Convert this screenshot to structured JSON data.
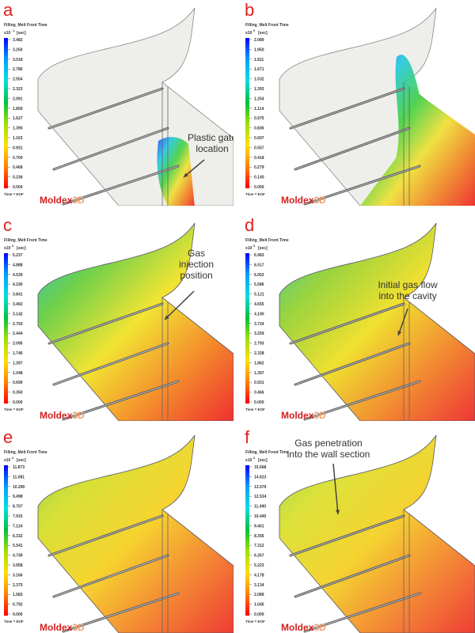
{
  "panels": [
    {
      "letter": "a",
      "header": "Filling_Melt Front Time",
      "scale": "x10",
      "exponent": "-1",
      "unit": "[sec]",
      "ticks": [
        "3.482",
        "3.250",
        "3.018",
        "2.786",
        "2.554",
        "2.323",
        "2.091",
        "1.859",
        "1.627",
        "1.395",
        "1.163",
        "0.931",
        "0.700",
        "0.468",
        "0.236",
        "0.004"
      ],
      "footer": "Time = EOF",
      "logo": [
        "Moldex",
        "3D"
      ],
      "annotation": [
        "Plastic gate",
        "location"
      ]
    },
    {
      "letter": "b",
      "header": "Filling_Melt Front Time",
      "scale": "x10",
      "exponent": "0",
      "unit": "[sec]",
      "ticks": [
        "2.089",
        "1.950",
        "1.811",
        "1.671",
        "1.532",
        "1.393",
        "1.254",
        "1.114",
        "0.975",
        "0.836",
        "0.697",
        "0.557",
        "0.418",
        "0.279",
        "0.140",
        "0.000"
      ],
      "footer": "Time = EOF",
      "logo": [
        "Moldex",
        "3D"
      ]
    },
    {
      "letter": "c",
      "header": "Filling_Melt Front Time",
      "scale": "x10",
      "exponent": "0",
      "unit": "[sec]",
      "ticks": [
        "5.237",
        "4.888",
        "4.539",
        "4.190",
        "3.841",
        "3.492",
        "3.142",
        "2.793",
        "2.444",
        "2.095",
        "1.746",
        "1.397",
        "1.048",
        "0.699",
        "0.350",
        "0.000"
      ],
      "footer": "Time = EOF",
      "logo": [
        "Moldex",
        "3D"
      ],
      "annotation": [
        "Gas",
        "injection",
        "position"
      ]
    },
    {
      "letter": "d",
      "header": "Filling_Melt Front Time",
      "scale": "x10",
      "exponent": "0",
      "unit": "[sec]",
      "ticks": [
        "6.983",
        "6.517",
        "6.052",
        "5.586",
        "5.121",
        "4.655",
        "4.190",
        "3.724",
        "3.259",
        "2.793",
        "2.328",
        "1.862",
        "1.397",
        "0.931",
        "0.466",
        "0.000"
      ],
      "footer": "Time = EOF",
      "logo": [
        "Moldex",
        "3D"
      ],
      "annotation": [
        "Initial gas flow",
        "into the cavity"
      ]
    },
    {
      "letter": "e",
      "header": "Filling_Melt Front Time",
      "scale": "x10",
      "exponent": "0",
      "unit": "[sec]",
      "ticks": [
        "11.873",
        "11.081",
        "10.290",
        "9.498",
        "8.707",
        "7.915",
        "7.124",
        "6.332",
        "5.541",
        "4.749",
        "3.958",
        "3.166",
        "2.375",
        "1.583",
        "0.792",
        "0.000"
      ],
      "footer": "Time = EOF",
      "logo": [
        "Moldex",
        "3D"
      ]
    },
    {
      "letter": "f",
      "header": "Filling_Melt Front Time",
      "scale": "x10",
      "exponent": "0",
      "unit": "[sec]",
      "ticks": [
        "15.668",
        "14.623",
        "13.579",
        "12.534",
        "11.490",
        "10.445",
        "9.401",
        "8.356",
        "7.312",
        "6.267",
        "5.223",
        "4.178",
        "3.134",
        "2.089",
        "1.045",
        "0.000"
      ],
      "footer": "Time = EOF",
      "logo": [
        "Moldex",
        "3D"
      ],
      "annotation": [
        "Gas penetration",
        "into the wall section"
      ]
    }
  ]
}
